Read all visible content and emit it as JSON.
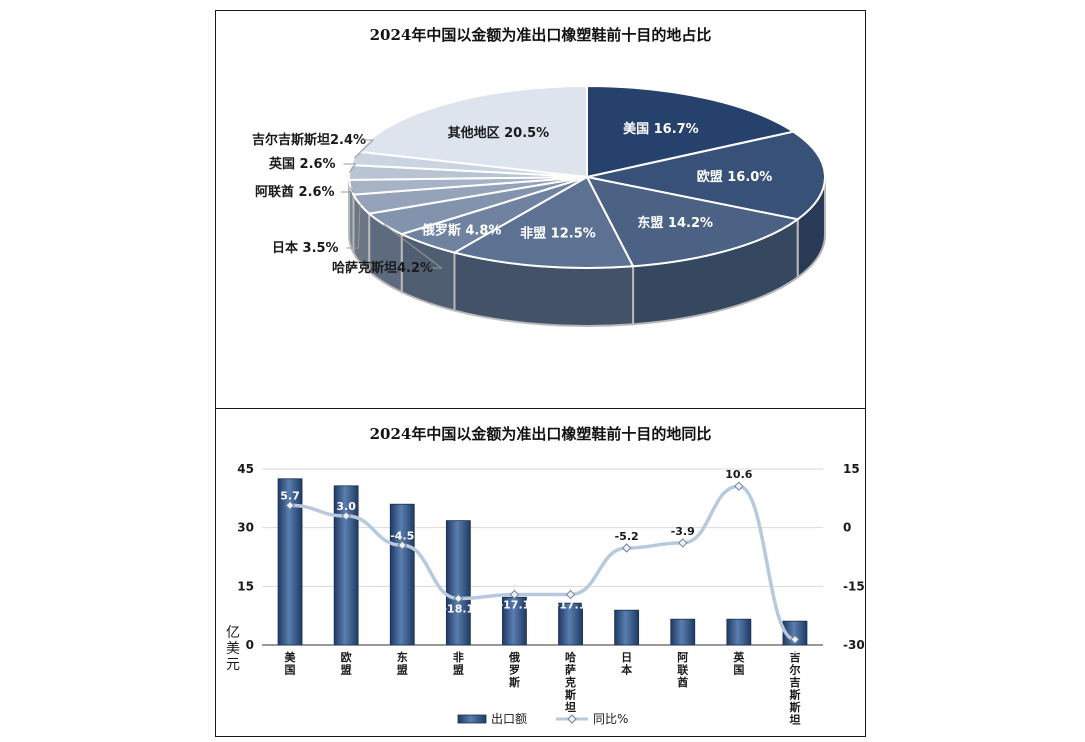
{
  "colors": {
    "bar": "#2e4f7e",
    "bar_light": "#5a7eaf",
    "line": "#b8c9de",
    "axis": "#333333",
    "pie_dark": "#26416b",
    "pie_light": "#dde4ee"
  },
  "pie": {
    "title": "2024年中国以金额为准出口橡塑鞋前十目的地占比"
  },
  "bar": {
    "title": "2024年中国以金额为准出口橡塑鞋前十目的地同比",
    "y_unit": "亿美元",
    "legend_bar": "出口额",
    "legend_line": "同比%"
  },
  "chart_data": [
    {
      "type": "pie",
      "title": "2024年中国以金额为准出口橡塑鞋前十目的地占比",
      "labels": [
        "美国 16.7%",
        "欧盟 16.0%",
        "东盟 14.2%",
        "非盟 12.5%",
        "俄罗斯 4.8%",
        "哈萨克斯坦4.2%",
        "日本 3.5%",
        "阿联酋 2.6%",
        "英国 2.6%",
        "吉尔吉斯斯坦2.4%",
        "其他地区 20.5%"
      ],
      "values": [
        16.7,
        16.0,
        14.2,
        12.5,
        4.8,
        4.2,
        3.5,
        2.6,
        2.6,
        2.4,
        20.5
      ]
    },
    {
      "type": "bar",
      "title": "2024年中国以金额为准出口橡塑鞋前十目的地同比",
      "categories": [
        "美国",
        "欧盟",
        "东盟",
        "非盟",
        "俄罗斯",
        "哈萨克斯坦",
        "日本",
        "阿联酋",
        "英国",
        "吉尔吉斯斯坦"
      ],
      "category_labels": [
        "美\n国",
        "欧\n盟",
        "东\n盟",
        "非\n盟",
        "俄\n罗\n斯",
        "哈\n萨\n克\n斯\n坦",
        "日\n本",
        "阿\n联\n酋",
        "英\n国",
        "吉\n尔\n吉\n斯\n斯\n坦"
      ],
      "series": [
        {
          "name": "出口额",
          "type": "bar",
          "axis": "left",
          "values": [
            42.5,
            40.7,
            36.0,
            31.8,
            12.2,
            10.7,
            8.9,
            6.6,
            6.6,
            6.1
          ]
        },
        {
          "name": "同比%",
          "type": "line",
          "axis": "right",
          "values": [
            5.7,
            3.0,
            -4.5,
            -18.1,
            -17.1,
            -17.1,
            -5.2,
            -3.9,
            10.6,
            -28.6
          ]
        }
      ],
      "y_left": {
        "label": "亿美元",
        "ylim": [
          0,
          45
        ],
        "ticks": [
          0,
          15,
          30,
          45
        ]
      },
      "y_right": {
        "ylim": [
          -30,
          15
        ],
        "ticks": [
          -30,
          -15,
          0,
          15
        ]
      },
      "grid": true,
      "legend": "bottom"
    }
  ]
}
